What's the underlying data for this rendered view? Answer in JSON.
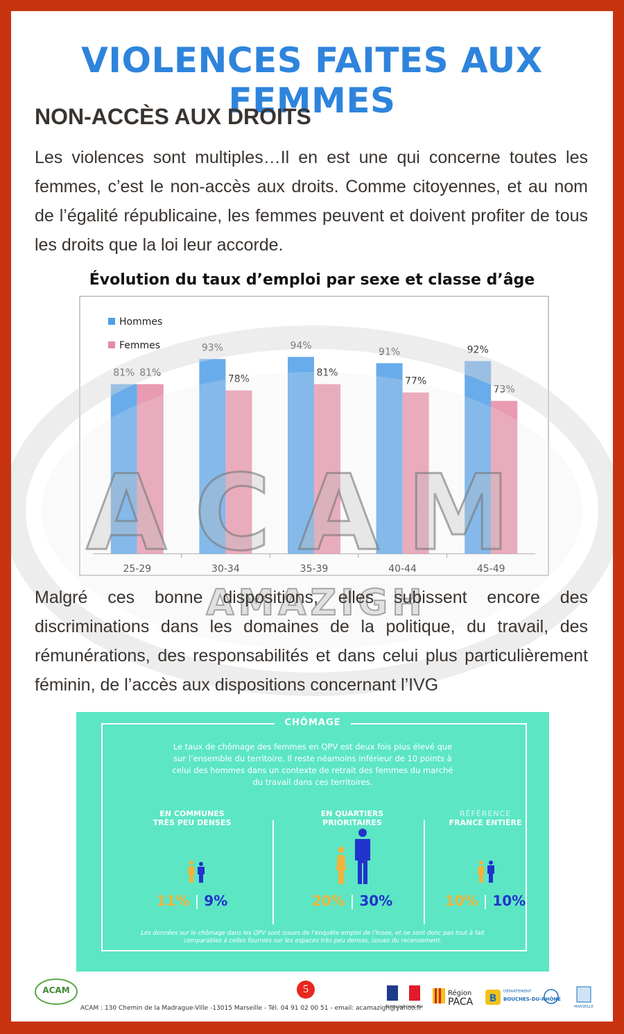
{
  "title": "VIOLENCES FAITES AUX FEMMES",
  "subtitle": "NON-ACCÈS AUX DROITS",
  "paragraph1": "Les violences sont multiples…Il en est une qui concerne toutes les femmes, c’est le non-accès aux droits. Comme citoyennes, et au nom de l’égalité républicaine, les femmes peuvent et doivent profiter de tous les droits que la loi leur accorde.",
  "paragraph2": "Malgré ces bonne dispositions, elles subissent encore des discriminations dans les domaines de la politique, du travail, des rémunérations, des responsabilités et dans  celui plus particulièrement féminin, de l’accès aux dispositions concernant l’IVG",
  "chart_data": {
    "type": "bar",
    "title": "Évolution du taux d’emploi par sexe et classe d’âge",
    "categories": [
      "25-29",
      "30-34",
      "35-39",
      "40-44",
      "45-49"
    ],
    "series": [
      {
        "name": "Hommes",
        "values": [
          81,
          93,
          94,
          91,
          92
        ],
        "labels": [
          "81%",
          "93%",
          "94%",
          "91%",
          "92%"
        ],
        "color": "#4f9de8"
      },
      {
        "name": "Femmes",
        "values": [
          81,
          78,
          81,
          77,
          73
        ],
        "labels": [
          "81%",
          "78%",
          "81%",
          "77%",
          "73%"
        ],
        "color": "#e58aa3"
      }
    ],
    "ylim": [
      0,
      100
    ],
    "grid": false,
    "legend": "top-left"
  },
  "watermark": {
    "main": "ACAM",
    "sub": "AMAZIGH"
  },
  "chomage": {
    "title": "CHÔMAGE",
    "intro": "Le taux de chômage des femmes en QPV est deux fois plus élevé que sur l’ensemble du territoire. Il reste néamoins inférieur de 10 points à celui des hommes dans un contexte de retrait des femmes du marché du travail dans ces territoires.",
    "columns": [
      {
        "label1": "EN COMMUNES",
        "label2": "TRÈS PEU DENSES",
        "women": "11%",
        "men": "9%",
        "women_value": 11,
        "men_value": 9
      },
      {
        "label1": "EN QUARTIERS",
        "label2": "PRIORITAIRES",
        "women": "20%",
        "men": "30%",
        "women_value": 20,
        "men_value": 30
      },
      {
        "label1": "RÉFÉRENCE",
        "label2": "FRANCE ENTIÈRE",
        "women": "10%",
        "men": "10%",
        "women_value": 10,
        "men_value": 10
      }
    ],
    "separator": "|",
    "note": "Les données sur le chômage dans les QPV sont issues de l’enquête emploi de l’Insee, et ne sont donc pas tout à fait comparables à celles fournies sur les espaces très peu denses, issues du recensement.",
    "colors": {
      "background": "#5ce6c4",
      "women": "#f2b33a",
      "men": "#2233cc"
    }
  },
  "footer": {
    "logo_text": "ACAM",
    "address": "ACAM : 130 Chemin de la Madrague-Ville -13015 Marseille  - Tél. 04 91 02 00 51 - email: acamazigh@yahoo.fr",
    "page_number": "5",
    "partners": [
      "RÉPUBLIQUE FRANÇAISE",
      "Région",
      "PACA",
      "DÉPARTEMENT",
      "BOUCHES-DU-RHÔNE",
      "MARSEILLE"
    ]
  }
}
